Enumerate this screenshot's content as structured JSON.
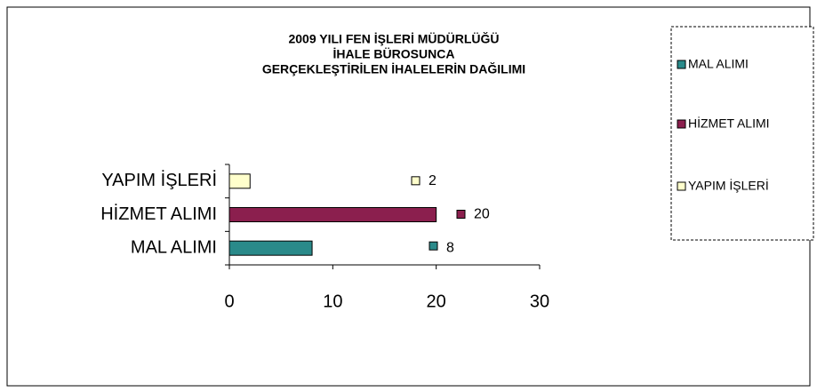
{
  "chart_data": {
    "type": "bar",
    "orientation": "horizontal",
    "title": [
      "2009 YILI FEN İŞLERİ MÜDÜRLÜĞÜ",
      "İHALE BÜROSUNCA",
      "GERÇEKLEŞTİRİLEN İHALELERİN DAĞILIMI"
    ],
    "categories": [
      "MAL ALIMI",
      "HİZMET ALIMI",
      "YAPIM İŞLERİ"
    ],
    "values": [
      8,
      20,
      2
    ],
    "colors": [
      "#2a8a8a",
      "#8b1f4e",
      "#ffffcc"
    ],
    "xlim": [
      0,
      30
    ],
    "xticks": [
      0,
      10,
      20,
      30
    ],
    "legend": "right"
  }
}
